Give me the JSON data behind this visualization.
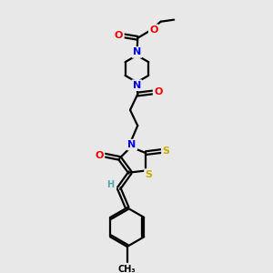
{
  "background_color": "#e8e8e8",
  "atom_colors": {
    "C": "#000000",
    "N": "#0000ee",
    "O": "#ee0000",
    "S": "#ccaa00",
    "H": "#50aaaa"
  },
  "bond_color": "#000000",
  "bond_width": 1.6,
  "figsize": [
    3.0,
    3.0
  ],
  "dpi": 100,
  "xlim": [
    -1.2,
    1.8
  ],
  "ylim": [
    -3.5,
    3.5
  ]
}
